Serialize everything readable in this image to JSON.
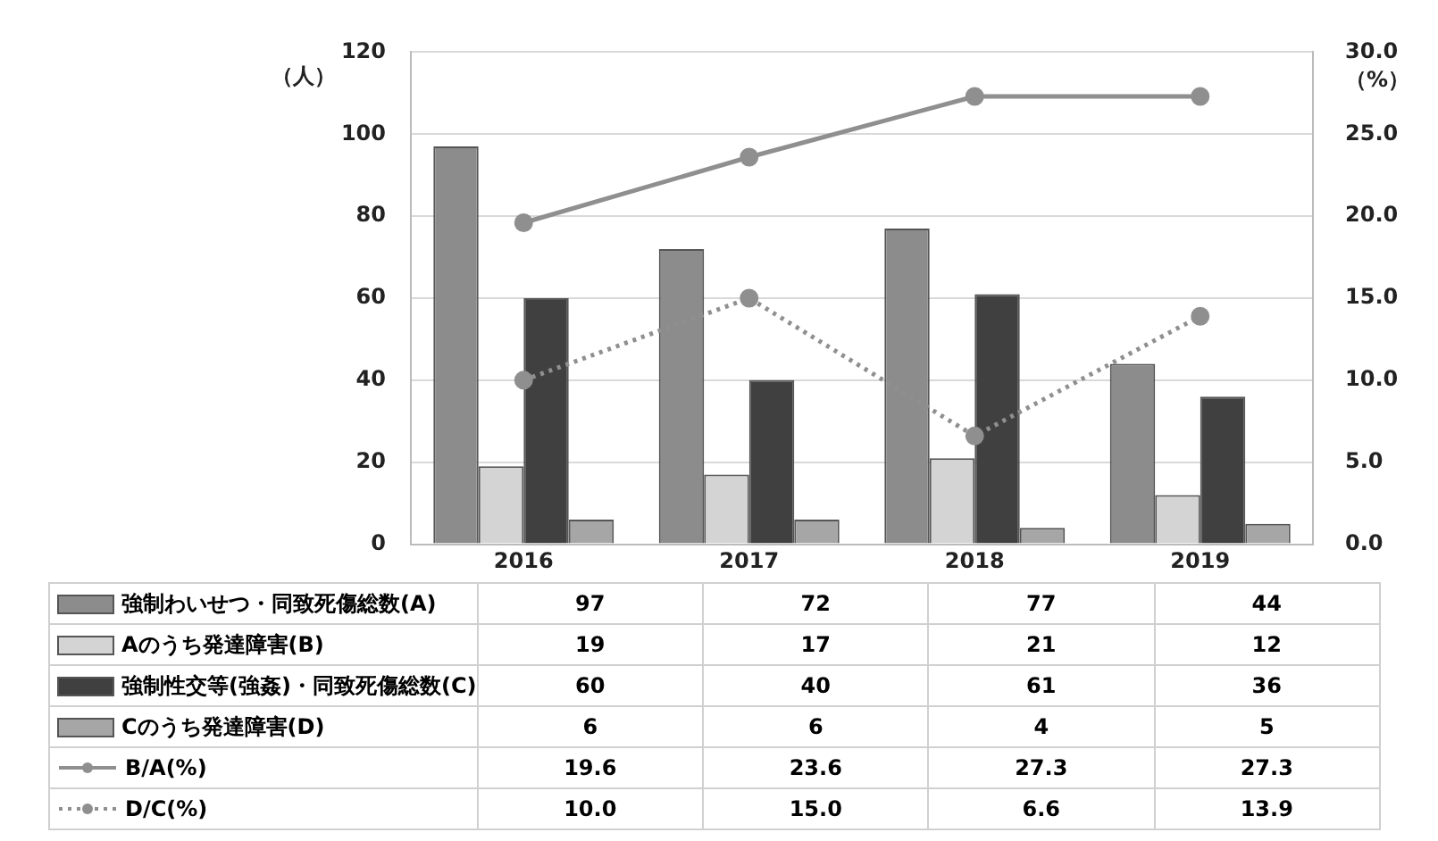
{
  "chart_data": {
    "type": "bar",
    "ylabel": "（人）",
    "y2label": "（%）",
    "categories": [
      "2016",
      "2017",
      "2018",
      "2019"
    ],
    "series": [
      {
        "name": "強制わいせつ・同致死傷総数(A)",
        "color": "#8c8c8c",
        "values": [
          97,
          72,
          77,
          44
        ],
        "value_labels": [
          "97",
          "72",
          "77",
          "44"
        ]
      },
      {
        "name": "Aのうち発達障害(B)",
        "color": "#d4d4d4",
        "values": [
          19,
          17,
          21,
          12
        ],
        "value_labels": [
          "19",
          "17",
          "21",
          "12"
        ]
      },
      {
        "name": "強制性交等(強姦)・同致死傷総数(C)",
        "color": "#404040",
        "values": [
          60,
          40,
          61,
          36
        ],
        "value_labels": [
          "60",
          "40",
          "61",
          "36"
        ]
      },
      {
        "name": "Cのうち発達障害(D)",
        "color": "#a6a6a6",
        "values": [
          6,
          6,
          4,
          5
        ],
        "value_labels": [
          "6",
          "6",
          "4",
          "5"
        ]
      },
      {
        "name": "B/A(%)",
        "type": "line",
        "axis": "y2",
        "color": "#8f8f8f",
        "line_style": "solid",
        "marker": "circle",
        "values": [
          19.6,
          23.6,
          27.3,
          27.3
        ],
        "value_labels": [
          "19.6",
          "23.6",
          "27.3",
          "27.3"
        ]
      },
      {
        "name": "D/C(%)",
        "type": "line",
        "axis": "y2",
        "color": "#8f8f8f",
        "line_style": "dotted",
        "marker": "circle",
        "values": [
          10.0,
          15.0,
          6.6,
          13.9
        ],
        "value_labels": [
          "10.0",
          "15.0",
          "6.6",
          "13.9"
        ]
      }
    ],
    "ylim": [
      0,
      120
    ],
    "yticks": [
      0,
      20,
      40,
      60,
      80,
      100,
      120
    ],
    "y2lim": [
      0,
      30
    ],
    "y2ticks": [
      {
        "value": 0,
        "label": "0.0"
      },
      {
        "value": 5,
        "label": "5.0"
      },
      {
        "value": 10,
        "label": "10.0"
      },
      {
        "value": 15,
        "label": "15.0"
      },
      {
        "value": 20,
        "label": "20.0"
      },
      {
        "value": 25,
        "label": "25.0"
      },
      {
        "value": 30,
        "label": "30.0"
      }
    ],
    "grid": "y",
    "legend": "bottom"
  }
}
